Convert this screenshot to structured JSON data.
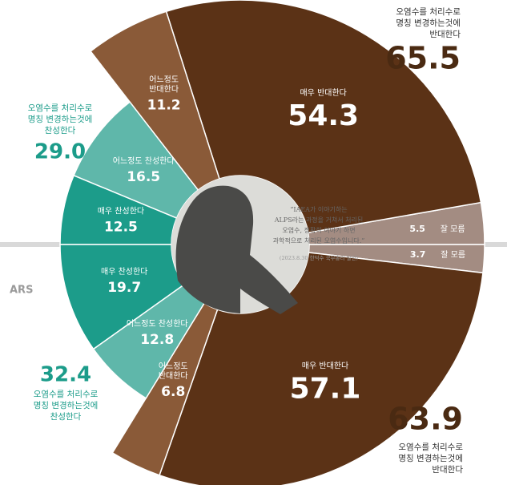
{
  "chart_data": [
    {
      "type": "pie",
      "categories": [
        [
          "잘 모름"
        ],
        [
          "매우 반대한다"
        ],
        [
          "어느정도",
          "반대한다"
        ],
        [
          "어느정도 찬성한다"
        ],
        [
          "매우 찬성한다"
        ]
      ],
      "values": [
        5.5,
        54.3,
        11.2,
        16.5,
        12.5
      ],
      "colors": [
        "#a38c82",
        "#5b3216",
        "#8a5a38",
        "#5fb7aa",
        "#1c9c8a"
      ],
      "summaries": [
        {
          "lines": [
            "오염수를 처리수로",
            "명칭 변경하는것에",
            "반대한다"
          ],
          "value": 65.5,
          "value_label": "65.5"
        },
        {
          "lines": [
            "오염수를 처리수로",
            "명칭 변경하는것에",
            "찬성한다"
          ],
          "value": 29.0,
          "value_label": "29.0"
        }
      ]
    },
    {
      "type": "pie",
      "label": "ARS",
      "categories": [
        [
          "잘 모름"
        ],
        [
          "매우 반대한다"
        ],
        [
          "어느정도",
          "반대한다"
        ],
        [
          "어느정도 찬성한다"
        ],
        [
          "매우 찬성한다"
        ]
      ],
      "values": [
        3.7,
        57.1,
        6.8,
        12.8,
        19.7
      ],
      "colors": [
        "#a38c82",
        "#5b3216",
        "#8a5a38",
        "#5fb7aa",
        "#1c9c8a"
      ],
      "summaries": [
        {
          "lines": [
            "오염수를 처리수로",
            "명칭 변경하는것에",
            "반대한다"
          ],
          "value": 63.9,
          "value_label": "63.9"
        },
        {
          "lines": [
            "오염수를 처리수로",
            "명칭 변경하는것에",
            "찬성한다"
          ],
          "value": 32.4,
          "value_label": "32.4"
        }
      ]
    }
  ],
  "quote": {
    "lines": [
      "“IAEA가 이야기하는",
      "ALPS라는 과정을 거쳐서 처리된",
      "오염수, 정확히 이야기 하면",
      "과학적으로 처리된 오염수입니다.”"
    ],
    "source": "(2023.8.30 한덕수 국무총리 발언)"
  }
}
